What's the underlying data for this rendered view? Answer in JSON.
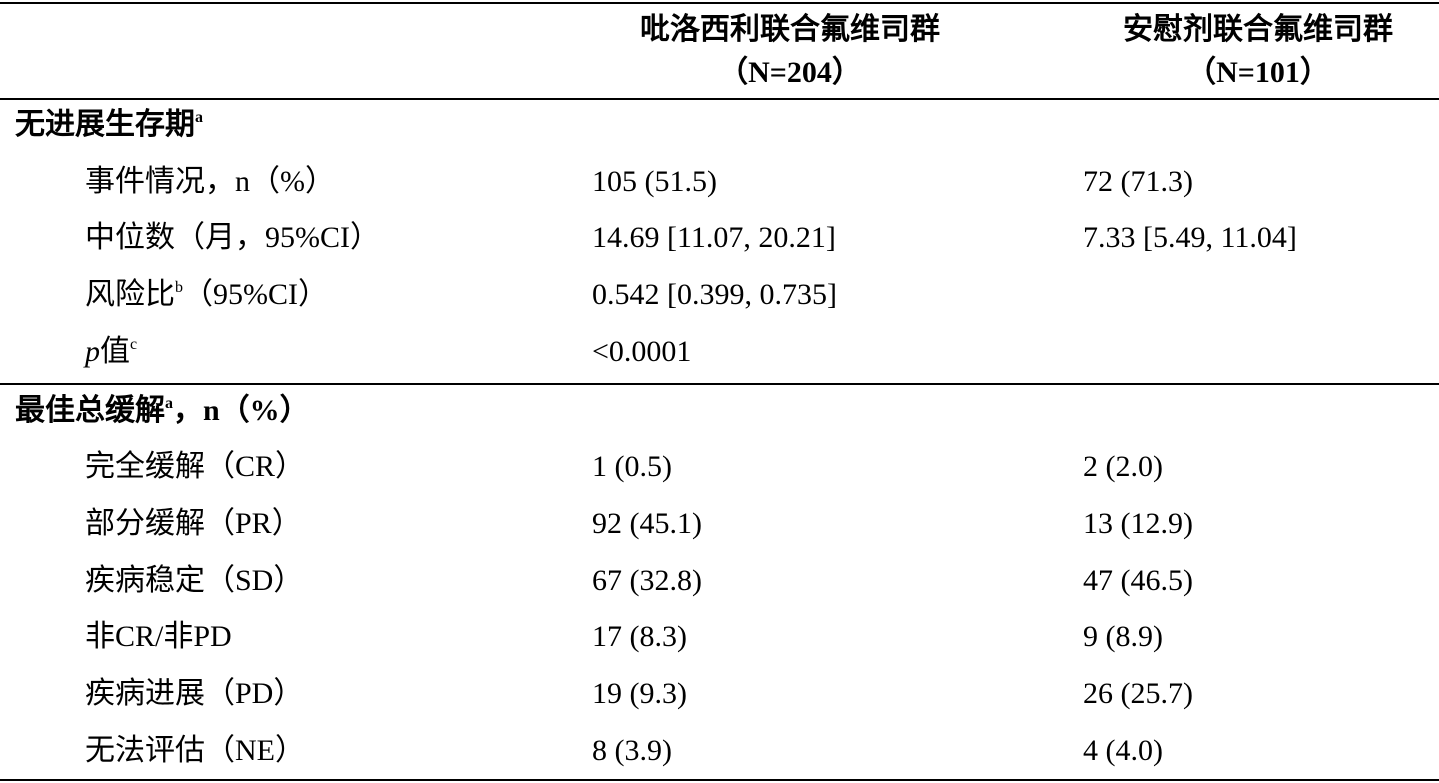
{
  "header": {
    "columns": [
      {
        "name": "吡洛西利联合氟维司群",
        "n": "（N=204）"
      },
      {
        "name": "安慰剂联合氟维司群",
        "n": "（N=101）"
      }
    ]
  },
  "sections": [
    {
      "title": [
        {
          "text": "无进展生存期"
        },
        {
          "sup": "a"
        }
      ],
      "rows": [
        {
          "label": [
            {
              "text": "事件情况，n（%）"
            }
          ],
          "values": [
            "105 (51.5)",
            "72 (71.3)"
          ]
        },
        {
          "label": [
            {
              "text": "中位数（月，95%CI）"
            }
          ],
          "values": [
            "14.69 [11.07, 20.21]",
            "7.33 [5.49, 11.04]"
          ]
        },
        {
          "label": [
            {
              "text": "风险比"
            },
            {
              "sup": "b"
            },
            {
              "text": "（95%CI）"
            }
          ],
          "values": [
            "0.542 [0.399, 0.735]",
            null
          ]
        },
        {
          "label": [
            {
              "italic": "p"
            },
            {
              "text": "值"
            },
            {
              "sup": "c"
            }
          ],
          "values": [
            "<0.0001",
            null
          ]
        }
      ]
    },
    {
      "title": [
        {
          "text": "最佳总缓解"
        },
        {
          "sup": "a"
        },
        {
          "text": "，n（%）"
        }
      ],
      "rows": [
        {
          "label": [
            {
              "text": "完全缓解（CR）"
            }
          ],
          "values": [
            "1 (0.5)",
            "2 (2.0)"
          ]
        },
        {
          "label": [
            {
              "text": "部分缓解（PR）"
            }
          ],
          "values": [
            "92 (45.1)",
            "13 (12.9)"
          ]
        },
        {
          "label": [
            {
              "text": "疾病稳定（SD）"
            }
          ],
          "values": [
            "67 (32.8)",
            "47 (46.5)"
          ]
        },
        {
          "label": [
            {
              "text": "非CR/非PD"
            }
          ],
          "values": [
            "17 (8.3)",
            "9 (8.9)"
          ]
        },
        {
          "label": [
            {
              "text": "疾病进展（PD）"
            }
          ],
          "values": [
            "19 (9.3)",
            "26 (25.7)"
          ]
        },
        {
          "label": [
            {
              "text": "无法评估（NE）"
            }
          ],
          "values": [
            "8 (3.9)",
            "4 (4.0)"
          ]
        }
      ]
    }
  ]
}
